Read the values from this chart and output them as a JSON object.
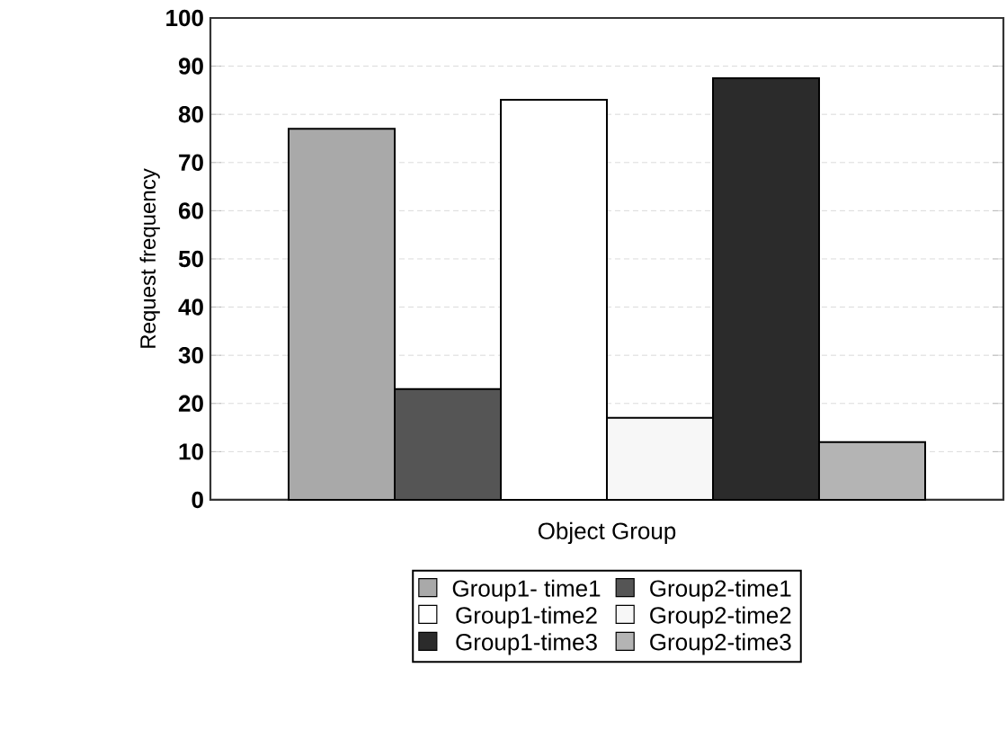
{
  "chart_data": {
    "type": "bar",
    "xlabel": "Object Group",
    "ylabel": "Request frequency",
    "categories": [
      null
    ],
    "series": [
      {
        "name": "Group1- time1",
        "color": "#a9a9a9",
        "values": [
          77
        ]
      },
      {
        "name": "Group2-time1",
        "color": "#555555",
        "values": [
          23
        ]
      },
      {
        "name": "Group1-time2",
        "color": "#ffffff",
        "values": [
          83
        ]
      },
      {
        "name": "Group2-time2",
        "color": "#f7f7f7",
        "values": [
          17
        ]
      },
      {
        "name": "Group1-time3",
        "color": "#2b2b2b",
        "values": [
          87.5
        ]
      },
      {
        "name": "Group2-time3",
        "color": "#b4b4b4",
        "values": [
          12
        ]
      }
    ],
    "ylim": [
      0,
      100
    ],
    "yticks": [
      0,
      10,
      20,
      30,
      40,
      50,
      60,
      70,
      80,
      90,
      100
    ],
    "grid": "y",
    "legend": "bottom"
  }
}
